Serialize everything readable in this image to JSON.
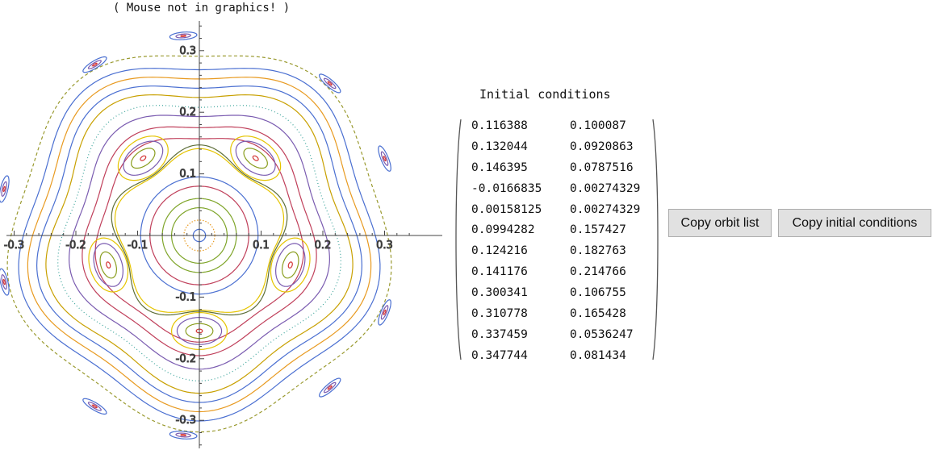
{
  "plot": {
    "caption": "( Mouse not in graphics! )",
    "x_ticks": [
      "-0.3",
      "-0.2",
      "-0.1",
      "0.1",
      "0.2",
      "0.3"
    ],
    "y_ticks": [
      "0.3",
      "0.2",
      "0.1",
      "-0.1",
      "-0.2",
      "-0.3"
    ]
  },
  "initial_conditions": {
    "heading": "Initial conditions",
    "rows": [
      [
        "0.116388",
        "0.100087"
      ],
      [
        "0.132044",
        "0.0920863"
      ],
      [
        "0.146395",
        "0.0787516"
      ],
      [
        "-0.0166835",
        "0.00274329"
      ],
      [
        "0.00158125",
        "0.00274329"
      ],
      [
        "0.0994282",
        "0.157427"
      ],
      [
        "0.124216",
        "0.182763"
      ],
      [
        "0.141176",
        "0.214766"
      ],
      [
        "0.300341",
        "0.106755"
      ],
      [
        "0.310778",
        "0.165428"
      ],
      [
        "0.337459",
        "0.0536247"
      ],
      [
        "0.347744",
        "0.081434"
      ]
    ]
  },
  "buttons": {
    "copy_orbit": "Copy orbit list",
    "copy_ic": "Copy initial conditions"
  },
  "colors": [
    "#4a6fd1",
    "#e89a20",
    "#7fa52a",
    "#c0405b",
    "#7a5bb0",
    "#c8a000",
    "#3aa39a",
    "#d96a3a",
    "#5a9fd4",
    "#9a9a30",
    "#c23a3a",
    "#2e9a5a"
  ]
}
